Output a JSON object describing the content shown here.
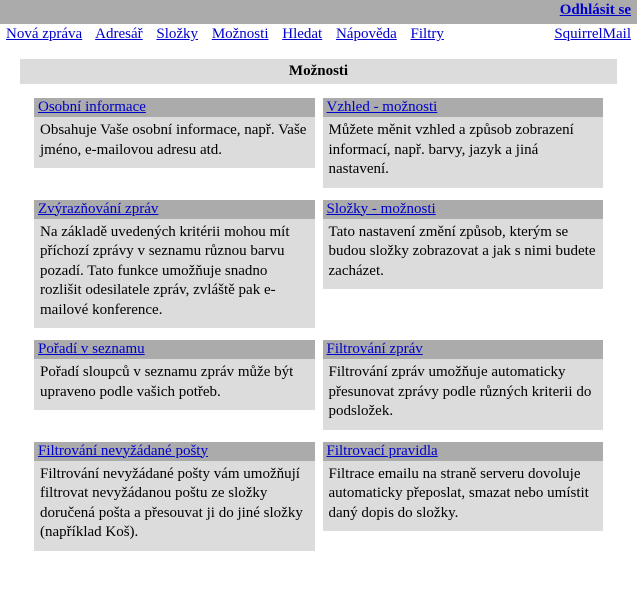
{
  "topbar": {
    "signout": "Odhlásit se"
  },
  "nav": {
    "links": [
      "Nová zpráva",
      "Adresář",
      "Složky",
      "Možnosti",
      "Hledat",
      "Nápověda",
      "Filtry"
    ],
    "brand": "SquirrelMail"
  },
  "page_title": "Možnosti",
  "cards": [
    {
      "title": "Osobní informace",
      "desc": "Obsahuje Vaše osobní informace, např. Vaše jméno, e-mailovou adresu atd."
    },
    {
      "title": "Vzhled - možnosti",
      "desc": "Můžete měnit vzhled a způsob zobrazení informací, např. barvy, jazyk a jiná nastavení."
    },
    {
      "title": "Zvýrazňování zpráv",
      "desc": "Na základě uvedených kritérii mohou mít příchozí zprávy v seznamu různou barvu pozadí. Tato funkce umožňuje snadno rozlišit odesilatele zpráv, zvláště pak e-mailové konference."
    },
    {
      "title": "Složky - možnosti",
      "desc": "Tato nastavení změní způsob, kterým se budou složky zobrazovat a jak s nimi budete zacházet."
    },
    {
      "title": "Pořadí v seznamu",
      "desc": "Pořadí sloupců v seznamu zpráv může být upraveno podle vašich potřeb."
    },
    {
      "title": "Filtrování zpráv",
      "desc": "Filtrování zpráv umožňuje automaticky přesunovat zprávy podle různých kriterii do podsložek."
    },
    {
      "title": "Filtrování nevyžádané pošty",
      "desc": "Filtrování nevyžádané pošty vám umožňují filtrovat nevyžádanou poštu ze složky doručená pošta a přesouvat ji do jiné složky (například Koš)."
    },
    {
      "title": "Filtrovací pravidla",
      "desc": "Filtrace emailu na straně serveru dovoluje automaticky přeposlat, smazat nebo umístit daný dopis do složky."
    }
  ]
}
